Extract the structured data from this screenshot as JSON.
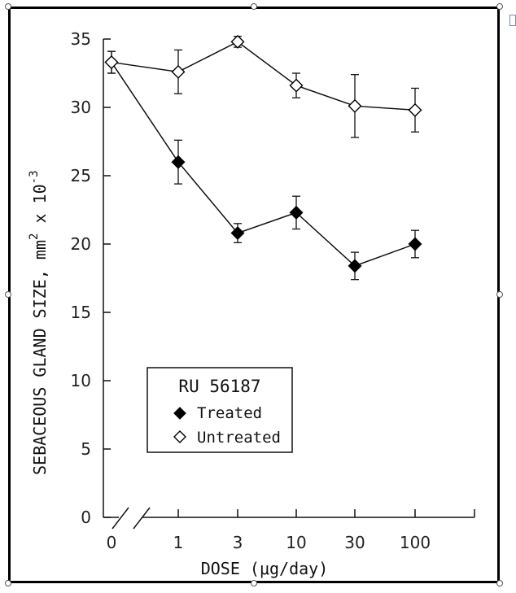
{
  "chart_data": {
    "type": "line",
    "xlabel": "DOSE (μg/day)",
    "ylabel": "SEBACEOUS GLAND SIZE,  mm² x 10⁻³",
    "ylabel_main": "SEBACEOUS GLAND SIZE,  mm",
    "ylabel_sup1": "2",
    "ylabel_mid": " x 10",
    "ylabel_sup2": "-3",
    "categories": [
      "0",
      "1",
      "3",
      "10",
      "30",
      "100"
    ],
    "ylim": [
      0,
      35
    ],
    "yticks": [
      "0",
      "5",
      "10",
      "15",
      "20",
      "25",
      "30",
      "35"
    ],
    "grid": false,
    "legend": {
      "title": "RU 56187",
      "placement": "lower-left",
      "entries": [
        "Treated",
        "Untreated"
      ]
    },
    "series": [
      {
        "name": "Treated",
        "marker": "filled-diamond",
        "values": [
          33.3,
          26.0,
          20.8,
          22.3,
          18.4,
          20.0
        ],
        "errors": [
          0.8,
          1.6,
          0.7,
          1.2,
          1.0,
          1.0
        ]
      },
      {
        "name": "Untreated",
        "marker": "open-diamond",
        "values": [
          33.3,
          32.6,
          34.8,
          31.6,
          30.1,
          29.8
        ],
        "errors": [
          0.8,
          1.6,
          0.4,
          0.9,
          2.3,
          1.6
        ]
      }
    ]
  }
}
